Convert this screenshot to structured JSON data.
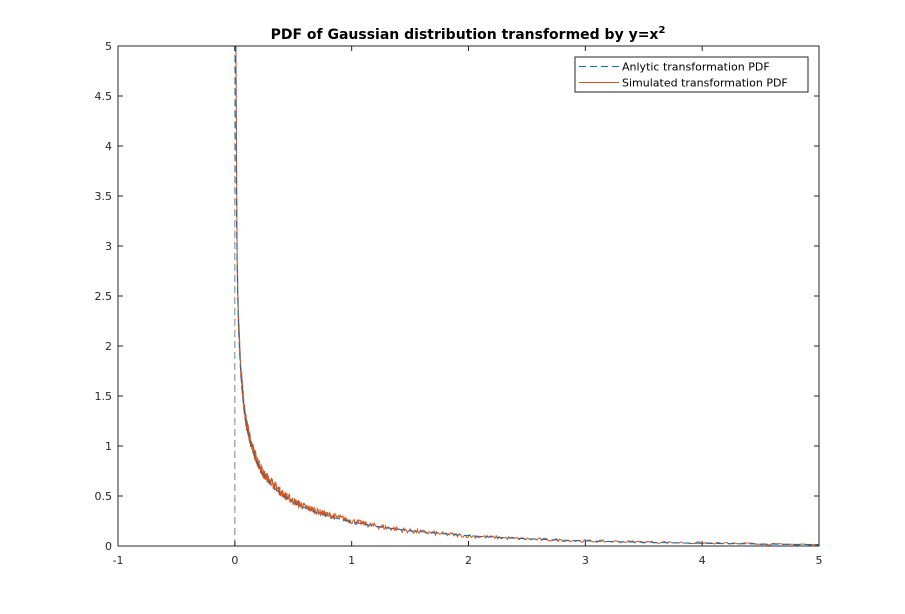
{
  "chart_data": {
    "type": "line",
    "title": "PDF of Gaussian distribution transformed by y=x",
    "title_superscript": "2",
    "xlabel": "",
    "ylabel": "",
    "xlim": [
      -1,
      5
    ],
    "ylim": [
      0,
      5
    ],
    "x_ticks": [
      "-1",
      "0",
      "1",
      "2",
      "3",
      "4",
      "5"
    ],
    "y_ticks": [
      "0",
      "0.5",
      "1",
      "1.5",
      "2",
      "2.5",
      "3",
      "3.5",
      "4",
      "4.5",
      "5"
    ],
    "grid": false,
    "legend_position": "top-right",
    "series": [
      {
        "name": "Anlytic transformation PDF",
        "style": "dashed",
        "color": "#0072BD",
        "formula": "exp(-y/2)/sqrt(2*pi*y)",
        "x": [
          0.0064,
          0.01,
          0.02,
          0.03,
          0.05,
          0.08,
          0.1,
          0.15,
          0.2,
          0.25,
          0.3,
          0.4,
          0.5,
          0.6,
          0.7,
          0.8,
          1.0,
          1.2,
          1.5,
          2.0,
          2.5,
          3.0,
          4.0,
          5.0
        ],
        "y": [
          4.97,
          3.97,
          2.79,
          2.28,
          1.74,
          1.36,
          1.2,
          0.96,
          0.81,
          0.7,
          0.63,
          0.52,
          0.44,
          0.38,
          0.33,
          0.3,
          0.24,
          0.2,
          0.15,
          0.1,
          0.07,
          0.05,
          0.03,
          0.01
        ]
      },
      {
        "name": "Simulated transformation PDF",
        "style": "solid",
        "color": "#D95319",
        "x": [
          0.01,
          0.02,
          0.03,
          0.05,
          0.08,
          0.1,
          0.15,
          0.2,
          0.25,
          0.3,
          0.4,
          0.5,
          0.6,
          0.7,
          0.8,
          1.0,
          1.2,
          1.5,
          2.0,
          2.5,
          3.0,
          4.0,
          5.0
        ],
        "y": [
          4.9,
          2.85,
          2.3,
          1.78,
          1.38,
          1.22,
          0.98,
          0.83,
          0.71,
          0.66,
          0.53,
          0.45,
          0.39,
          0.35,
          0.31,
          0.25,
          0.2,
          0.15,
          0.1,
          0.07,
          0.05,
          0.03,
          0.01
        ]
      },
      {
        "name": "",
        "style": "dashed-gray",
        "color": "#7f7f7f",
        "x": [
          0,
          0
        ],
        "y": [
          0,
          5
        ]
      }
    ]
  }
}
